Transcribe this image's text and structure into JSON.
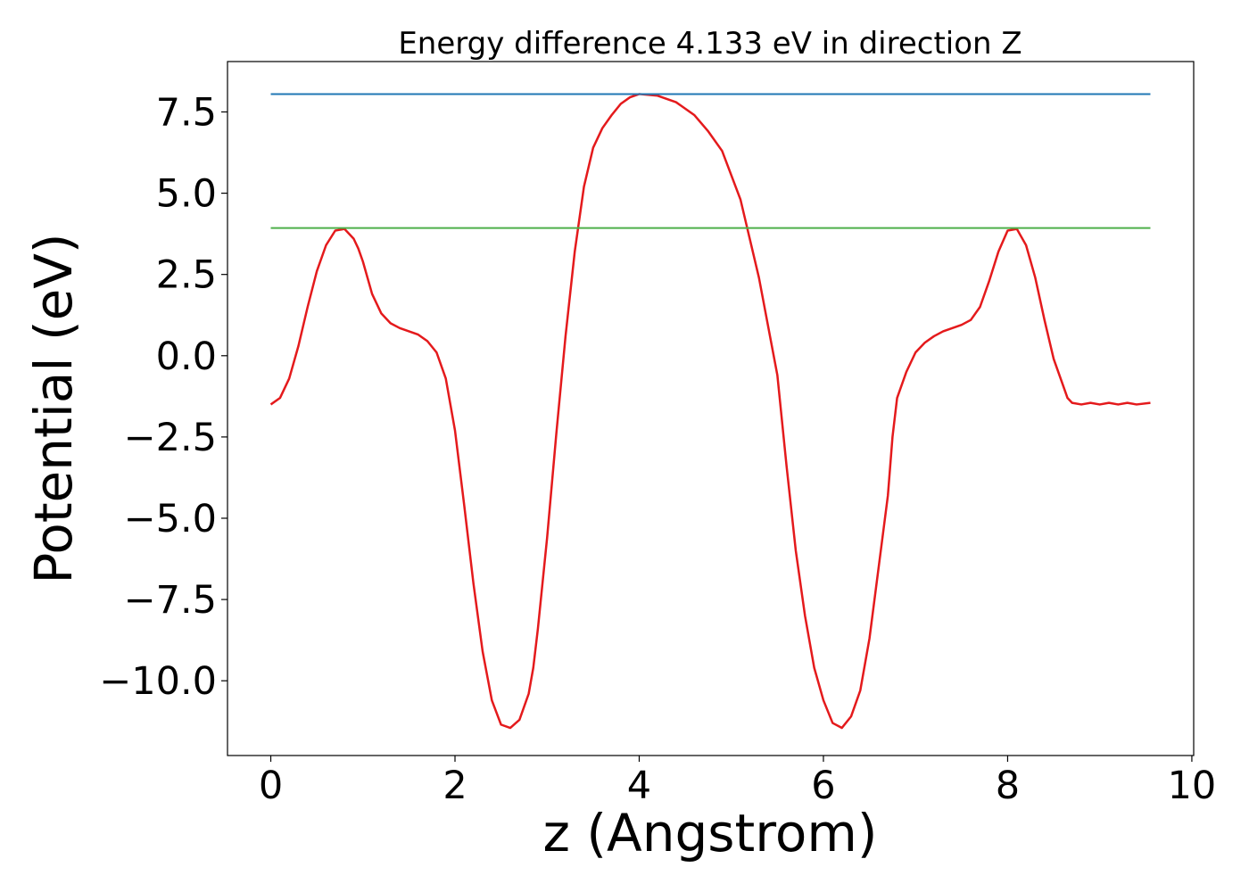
{
  "chart_data": {
    "type": "line",
    "title": "Energy difference 4.133 eV in direction Z",
    "xlabel": "z (Angstrom)",
    "ylabel": "Potential (eV)",
    "xlim": [
      -0.47,
      10.02
    ],
    "ylim": [
      -12.3,
      9.05
    ],
    "x_ticks": [
      {
        "value": 0,
        "label": "0"
      },
      {
        "value": 2,
        "label": "2"
      },
      {
        "value": 4,
        "label": "4"
      },
      {
        "value": 6,
        "label": "6"
      },
      {
        "value": 8,
        "label": "8"
      },
      {
        "value": 10,
        "label": "10"
      }
    ],
    "y_ticks": [
      {
        "value": 7.5,
        "label": "7.5"
      },
      {
        "value": 5.0,
        "label": "5.0"
      },
      {
        "value": 2.5,
        "label": "2.5"
      },
      {
        "value": 0.0,
        "label": "0.0"
      },
      {
        "value": -2.5,
        "label": "−2.5"
      },
      {
        "value": -5.0,
        "label": "−5.0"
      },
      {
        "value": -7.5,
        "label": "−7.5"
      },
      {
        "value": -10.0,
        "label": "−10.0"
      }
    ],
    "grid": false,
    "legend": "none",
    "series": [
      {
        "color": "#e41a1c",
        "x": [
          0.0,
          0.1,
          0.2,
          0.3,
          0.4,
          0.5,
          0.6,
          0.7,
          0.8,
          0.9,
          0.95,
          1.0,
          1.1,
          1.2,
          1.3,
          1.4,
          1.5,
          1.6,
          1.7,
          1.8,
          1.9,
          2.0,
          2.1,
          2.2,
          2.3,
          2.4,
          2.5,
          2.6,
          2.7,
          2.8,
          2.85,
          2.9,
          3.0,
          3.1,
          3.2,
          3.3,
          3.4,
          3.5,
          3.6,
          3.7,
          3.8,
          3.9,
          4.0,
          4.2,
          4.4,
          4.6,
          4.75,
          4.9,
          5.1,
          5.3,
          5.5,
          5.6,
          5.7,
          5.8,
          5.9,
          6.0,
          6.1,
          6.2,
          6.3,
          6.4,
          6.5,
          6.6,
          6.7,
          6.75,
          6.8,
          6.9,
          7.0,
          7.1,
          7.2,
          7.3,
          7.4,
          7.5,
          7.6,
          7.7,
          7.8,
          7.9,
          8.0,
          8.1,
          8.2,
          8.3,
          8.4,
          8.5,
          8.6,
          8.65,
          8.7,
          8.8,
          8.9,
          9.0,
          9.1,
          9.2,
          9.3,
          9.4,
          9.55
        ],
        "y": [
          -1.5,
          -1.3,
          -0.7,
          0.3,
          1.5,
          2.6,
          3.4,
          3.85,
          3.9,
          3.6,
          3.3,
          2.9,
          1.9,
          1.3,
          1.0,
          0.85,
          0.75,
          0.65,
          0.45,
          0.1,
          -0.7,
          -2.3,
          -4.6,
          -7.0,
          -9.1,
          -10.6,
          -11.35,
          -11.45,
          -11.2,
          -10.4,
          -9.6,
          -8.4,
          -5.6,
          -2.4,
          0.6,
          3.2,
          5.2,
          6.4,
          7.0,
          7.4,
          7.75,
          7.95,
          8.05,
          8.0,
          7.8,
          7.4,
          6.9,
          6.3,
          4.8,
          2.4,
          -0.6,
          -3.4,
          -6.0,
          -8.0,
          -9.6,
          -10.6,
          -11.3,
          -11.45,
          -11.1,
          -10.3,
          -8.7,
          -6.5,
          -4.3,
          -2.5,
          -1.3,
          -0.5,
          0.1,
          0.4,
          0.6,
          0.75,
          0.85,
          0.95,
          1.1,
          1.5,
          2.3,
          3.2,
          3.85,
          3.9,
          3.4,
          2.4,
          1.1,
          -0.1,
          -0.9,
          -1.3,
          -1.45,
          -1.5,
          -1.45,
          -1.5,
          -1.45,
          -1.5,
          -1.45,
          -1.5,
          -1.45
        ]
      },
      {
        "color": "#1f77b4",
        "x": [
          0.0,
          9.55
        ],
        "y": [
          8.05,
          8.05
        ]
      },
      {
        "color": "#4daf4a",
        "x": [
          0.0,
          9.55
        ],
        "y": [
          3.93,
          3.93
        ]
      }
    ]
  }
}
